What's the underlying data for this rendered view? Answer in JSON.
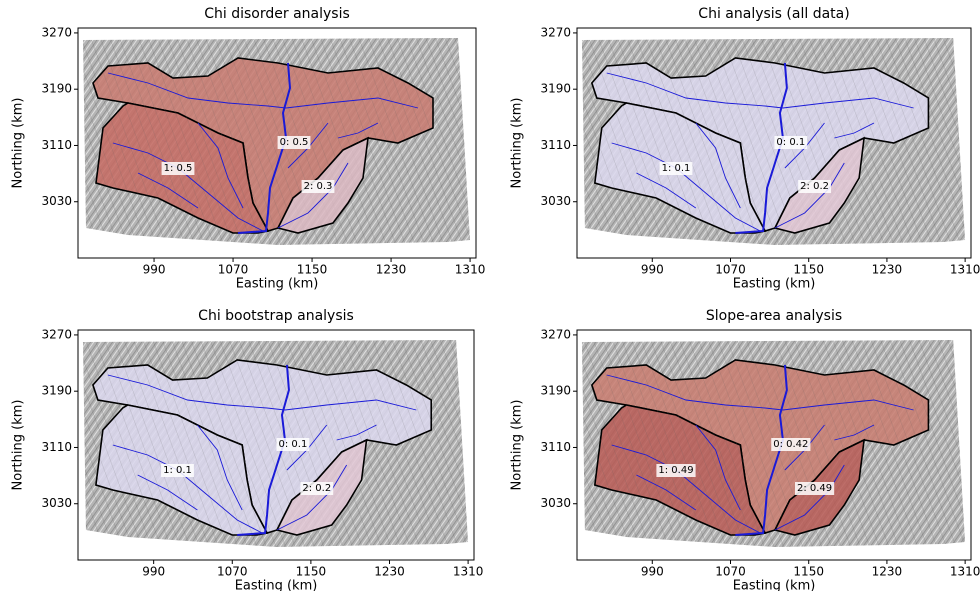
{
  "chart_data": [
    {
      "type": "map",
      "title": "Chi disorder analysis",
      "xlabel": "Easting (km)",
      "ylabel": "Northing (km)",
      "xlim": [
        913,
        1316
      ],
      "ylim": [
        2950,
        3277
      ],
      "xticks": [
        990,
        1070,
        1150,
        1230,
        1310
      ],
      "yticks": [
        3030,
        3110,
        3190,
        3270
      ],
      "basins": [
        {
          "label": "0: 0.5",
          "color": "#c97a70"
        },
        {
          "label": "1: 0.5",
          "color": "#c56a62"
        },
        {
          "label": "2: 0.3",
          "color": "#dcb8c2"
        }
      ]
    },
    {
      "type": "map",
      "title": "Chi analysis (all data)",
      "xlabel": "Easting (km)",
      "ylabel": "Northing (km)",
      "xlim": [
        913,
        1316
      ],
      "ylim": [
        2950,
        3277
      ],
      "xticks": [
        990,
        1070,
        1150,
        1230,
        1310
      ],
      "yticks": [
        3030,
        3110,
        3190,
        3270
      ],
      "basins": [
        {
          "label": "0: 0.1",
          "color": "#dcd8ee"
        },
        {
          "label": "1: 0.1",
          "color": "#dcd8ee"
        },
        {
          "label": "2: 0.2",
          "color": "#e3c8d6"
        }
      ]
    },
    {
      "type": "map",
      "title": "Chi bootstrap analysis",
      "xlabel": "Easting (km)",
      "ylabel": "Northing (km)",
      "xlim": [
        913,
        1316
      ],
      "ylim": [
        2950,
        3277
      ],
      "xticks": [
        990,
        1070,
        1150,
        1230,
        1310
      ],
      "yticks": [
        3030,
        3110,
        3190,
        3270
      ],
      "basins": [
        {
          "label": "0: 0.1",
          "color": "#dcd8ee"
        },
        {
          "label": "1: 0.1",
          "color": "#dcd8ee"
        },
        {
          "label": "2: 0.2",
          "color": "#e3c8d6"
        }
      ]
    },
    {
      "type": "map",
      "title": "Slope-area analysis",
      "xlabel": "Easting (km)",
      "ylabel": "Northing (km)",
      "xlim": [
        913,
        1316
      ],
      "ylim": [
        2950,
        3277
      ],
      "xticks": [
        990,
        1070,
        1150,
        1230,
        1310
      ],
      "yticks": [
        3030,
        3110,
        3190,
        3270
      ],
      "basins": [
        {
          "label": "0: 0.42",
          "color": "#c97c70"
        },
        {
          "label": "1: 0.49",
          "color": "#b85a55"
        },
        {
          "label": "2: 0.49",
          "color": "#b85a55"
        }
      ]
    }
  ]
}
